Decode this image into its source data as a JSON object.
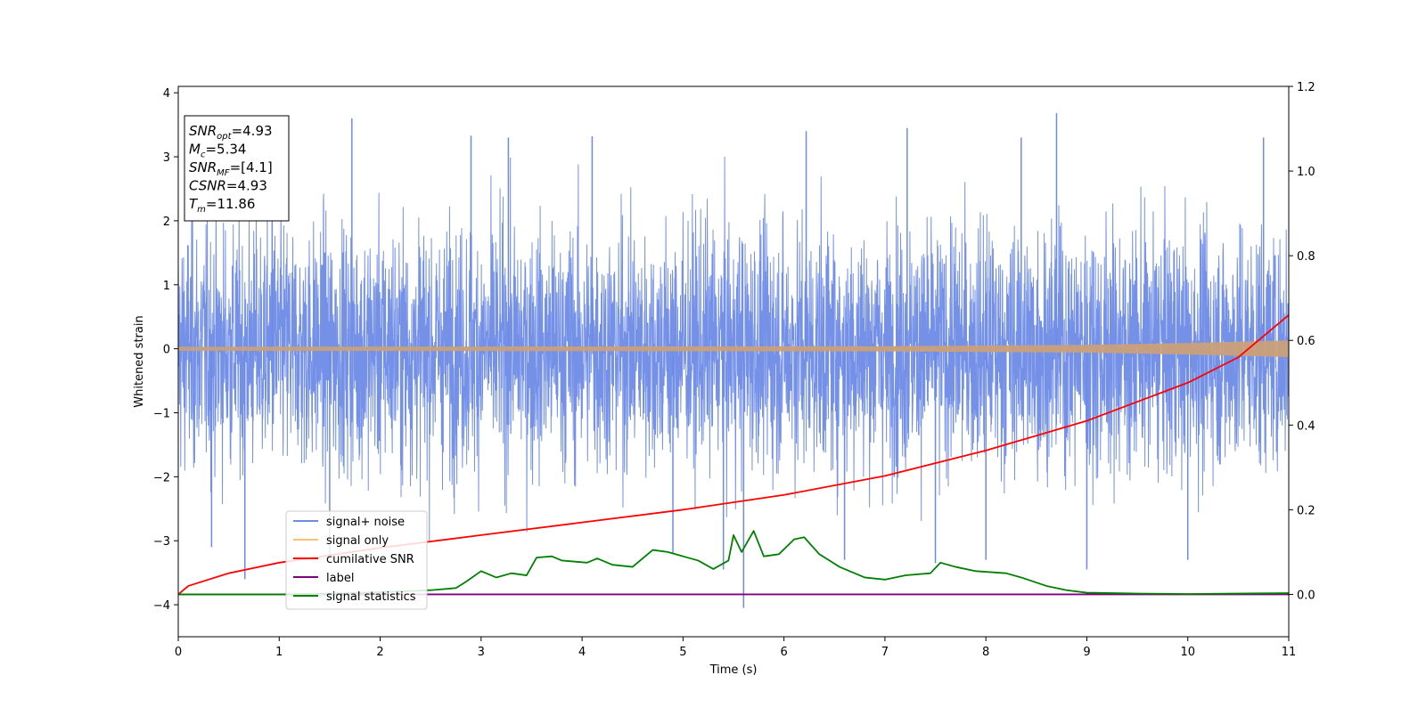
{
  "chart_data": {
    "type": "line",
    "xlabel": "Time (s)",
    "ylabel": "Whitened strain",
    "xlim": [
      0,
      11
    ],
    "ylim_left": [
      -4.5,
      4.1
    ],
    "ylim_right": [
      -0.1,
      1.2
    ],
    "x_ticks": [
      0,
      1,
      2,
      3,
      4,
      5,
      6,
      7,
      8,
      9,
      10,
      11
    ],
    "y_ticks_left": [
      4,
      3,
      2,
      1,
      0,
      -1,
      -2,
      -3,
      -4
    ],
    "y_ticks_left_labels": [
      "4",
      "3",
      "2",
      "1",
      "0",
      "−1",
      "−2",
      "−3",
      "−4"
    ],
    "y_ticks_right": [
      1.2,
      1.0,
      0.8,
      0.6,
      0.4,
      0.2,
      0.0
    ],
    "y_ticks_right_labels": [
      "1.2",
      "1.0",
      "0.8",
      "0.6",
      "0.4",
      "0.2",
      "0.0"
    ],
    "info_box": [
      {
        "sym": "SNR",
        "sub": "opt",
        "value": "=4.93"
      },
      {
        "sym": "M",
        "sub": "c",
        "value": "=5.34"
      },
      {
        "sym": "SNR",
        "sub": "MF",
        "value": "=[4.1]"
      },
      {
        "sym": "CSNR",
        "sub": "",
        "value": "=4.93"
      },
      {
        "sym": "T",
        "sub": "m",
        "value": "=11.86"
      }
    ],
    "legend": {
      "placement": "lower-left",
      "entries": [
        {
          "label": "signal+ noise",
          "color": "#6d8be6"
        },
        {
          "label": "signal only",
          "color": "#f5c27a"
        },
        {
          "label": "cumilative SNR",
          "color": "#ff0000"
        },
        {
          "label": "label",
          "color": "#800080"
        },
        {
          "label": "signal statistics",
          "color": "#008000"
        }
      ]
    },
    "series": [
      {
        "name": "signal+ noise",
        "axis": "left",
        "color": "#6d8be6",
        "description_kind": "noise band",
        "std": 0.95,
        "peaks": [
          [
            0.93,
            3.55
          ],
          [
            1.72,
            3.6
          ],
          [
            2.9,
            3.33
          ],
          [
            3.27,
            3.3
          ],
          [
            4.1,
            3.32
          ],
          [
            6.22,
            3.4
          ],
          [
            7.22,
            3.45
          ],
          [
            8.35,
            3.3
          ],
          [
            8.7,
            3.68
          ],
          [
            10.75,
            3.3
          ]
        ],
        "troughs": [
          [
            0.33,
            -3.1
          ],
          [
            0.66,
            -3.6
          ],
          [
            1.5,
            -3.25
          ],
          [
            4.9,
            -3.2
          ],
          [
            5.4,
            -3.45
          ],
          [
            5.6,
            -4.05
          ],
          [
            6.6,
            -3.3
          ],
          [
            7.5,
            -3.35
          ],
          [
            8.0,
            -3.3
          ],
          [
            9.0,
            -3.45
          ],
          [
            10.0,
            -3.3
          ]
        ]
      },
      {
        "name": "signal only",
        "axis": "left",
        "color": "#f5c27a",
        "amplitude": [
          [
            0,
            0.03
          ],
          [
            7,
            0.04
          ],
          [
            9,
            0.06
          ],
          [
            10,
            0.09
          ],
          [
            11,
            0.13
          ]
        ]
      },
      {
        "name": "cumilative SNR",
        "axis": "right",
        "color": "#ff0000",
        "points": [
          [
            0,
            0.0
          ],
          [
            0.1,
            0.02
          ],
          [
            0.5,
            0.05
          ],
          [
            1,
            0.075
          ],
          [
            2,
            0.11
          ],
          [
            3,
            0.14
          ],
          [
            4,
            0.17
          ],
          [
            5,
            0.2
          ],
          [
            6,
            0.235
          ],
          [
            7,
            0.28
          ],
          [
            8,
            0.34
          ],
          [
            9,
            0.41
          ],
          [
            10,
            0.5
          ],
          [
            10.5,
            0.56
          ],
          [
            11,
            0.66
          ]
        ]
      },
      {
        "name": "label",
        "axis": "right",
        "color": "#800080",
        "points": [
          [
            0,
            0.0
          ],
          [
            11,
            0.0
          ]
        ]
      },
      {
        "name": "signal statistics",
        "axis": "right",
        "color": "#008000",
        "points": [
          [
            0,
            0.0
          ],
          [
            1.0,
            0.0
          ],
          [
            1.5,
            0.002
          ],
          [
            2.0,
            0.005
          ],
          [
            2.5,
            0.01
          ],
          [
            2.75,
            0.015
          ],
          [
            2.85,
            0.03
          ],
          [
            3.0,
            0.055
          ],
          [
            3.15,
            0.04
          ],
          [
            3.3,
            0.05
          ],
          [
            3.45,
            0.045
          ],
          [
            3.55,
            0.087
          ],
          [
            3.7,
            0.09
          ],
          [
            3.8,
            0.08
          ],
          [
            4.05,
            0.075
          ],
          [
            4.15,
            0.085
          ],
          [
            4.3,
            0.07
          ],
          [
            4.5,
            0.065
          ],
          [
            4.7,
            0.105
          ],
          [
            4.85,
            0.1
          ],
          [
            5.0,
            0.09
          ],
          [
            5.15,
            0.08
          ],
          [
            5.3,
            0.06
          ],
          [
            5.45,
            0.08
          ],
          [
            5.5,
            0.14
          ],
          [
            5.58,
            0.1
          ],
          [
            5.7,
            0.15
          ],
          [
            5.8,
            0.09
          ],
          [
            5.95,
            0.095
          ],
          [
            6.1,
            0.13
          ],
          [
            6.2,
            0.135
          ],
          [
            6.35,
            0.095
          ],
          [
            6.55,
            0.065
          ],
          [
            6.8,
            0.04
          ],
          [
            7.0,
            0.035
          ],
          [
            7.2,
            0.045
          ],
          [
            7.45,
            0.05
          ],
          [
            7.55,
            0.075
          ],
          [
            7.7,
            0.065
          ],
          [
            7.9,
            0.055
          ],
          [
            8.2,
            0.05
          ],
          [
            8.35,
            0.04
          ],
          [
            8.6,
            0.02
          ],
          [
            8.8,
            0.01
          ],
          [
            9.0,
            0.004
          ],
          [
            9.5,
            0.002
          ],
          [
            10.0,
            0.001
          ],
          [
            11.0,
            0.003
          ]
        ]
      }
    ]
  }
}
